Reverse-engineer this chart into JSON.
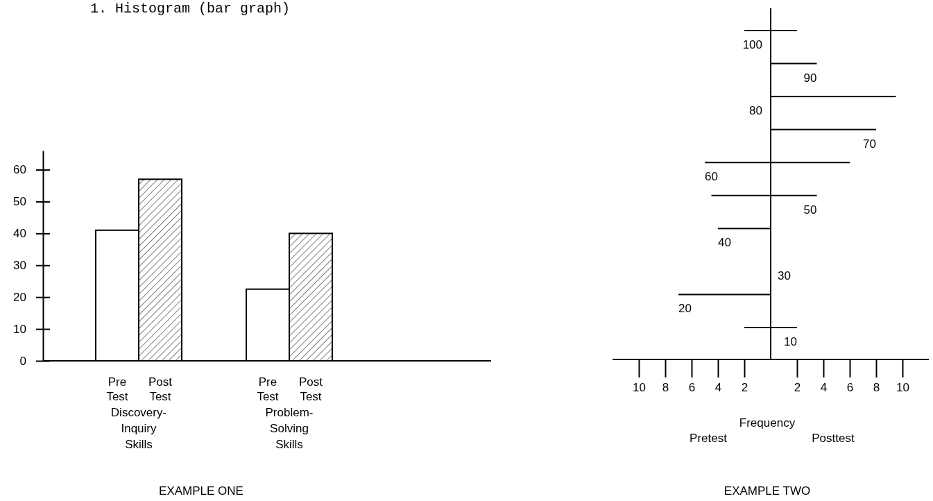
{
  "chart_data": [
    {
      "type": "bar",
      "title": "1.   Histogram (bar graph)",
      "categories": [
        "Discovery-Inquiry Skills",
        "Problem-Solving Skills"
      ],
      "series": [
        {
          "name": "Pre Test",
          "color": "#ffffff",
          "values": [
            41,
            22.5
          ]
        },
        {
          "name": "Post Test",
          "color": "#000000",
          "values": [
            57,
            40
          ]
        }
      ],
      "ylim": [
        0,
        66
      ],
      "yticks": [
        0,
        10,
        20,
        30,
        40,
        50,
        60
      ],
      "annotations": [
        "EXAMPLE ONE"
      ]
    },
    {
      "type": "bar",
      "orientation": "horizontal",
      "categories": [
        "100",
        "90",
        "80",
        "70",
        "60",
        "50",
        "40",
        "30",
        "20",
        "10"
      ],
      "series": [
        {
          "color": "#000000",
          "values": [
            -2,
            0,
            0,
            0,
            -5,
            -4.5,
            -4,
            0,
            -7,
            -2
          ]
        },
        {
          "color": "#000000",
          "values": [
            2,
            3.5,
            9.5,
            8,
            6,
            3.5,
            0,
            0,
            0,
            2
          ]
        }
      ],
      "xlim": [
        -12,
        12
      ],
      "xticks": [
        {
          "value": -10,
          "label": "10"
        },
        {
          "value": -8,
          "label": "8"
        },
        {
          "value": -6,
          "label": "6"
        },
        {
          "value": -4,
          "label": "4"
        },
        {
          "value": -2,
          "label": "2"
        },
        2,
        4,
        6,
        8,
        10
      ],
      "xlabel": "Frequency",
      "annotations": [
        "Pretest",
        "Posttest",
        "EXAMPLE TWO"
      ]
    }
  ]
}
